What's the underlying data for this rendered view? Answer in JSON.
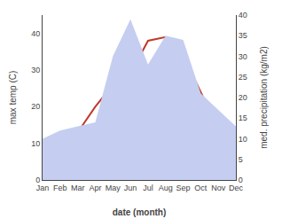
{
  "chart_data": {
    "type": "line",
    "categories": [
      "Jan",
      "Feb",
      "Mar",
      "Apr",
      "May",
      "Jun",
      "Jul",
      "Aug",
      "Sep",
      "Oct",
      "Nov",
      "Dec"
    ],
    "series": [
      {
        "type": "area",
        "color": "#c5cef0",
        "axis": "y2",
        "values": [
          10,
          12,
          13,
          14,
          30,
          39,
          28,
          35,
          34,
          21,
          17,
          13
        ]
      },
      {
        "type": "line",
        "color": "#c0392b",
        "values": [
          5,
          11,
          13,
          20,
          26,
          29,
          38,
          39,
          34,
          24,
          14,
          7
        ]
      }
    ],
    "xlabel": "date (month)",
    "ylabel": "max temp (C)",
    "y2label": "med. precipitation (kg/m2)",
    "ylim": [
      0,
      45
    ],
    "yticks": [
      0,
      10,
      20,
      30,
      40
    ],
    "y2lim": [
      0,
      40
    ],
    "y2ticks": [
      0,
      5,
      10,
      15,
      20,
      25,
      30,
      35,
      40
    ],
    "grid": false
  }
}
